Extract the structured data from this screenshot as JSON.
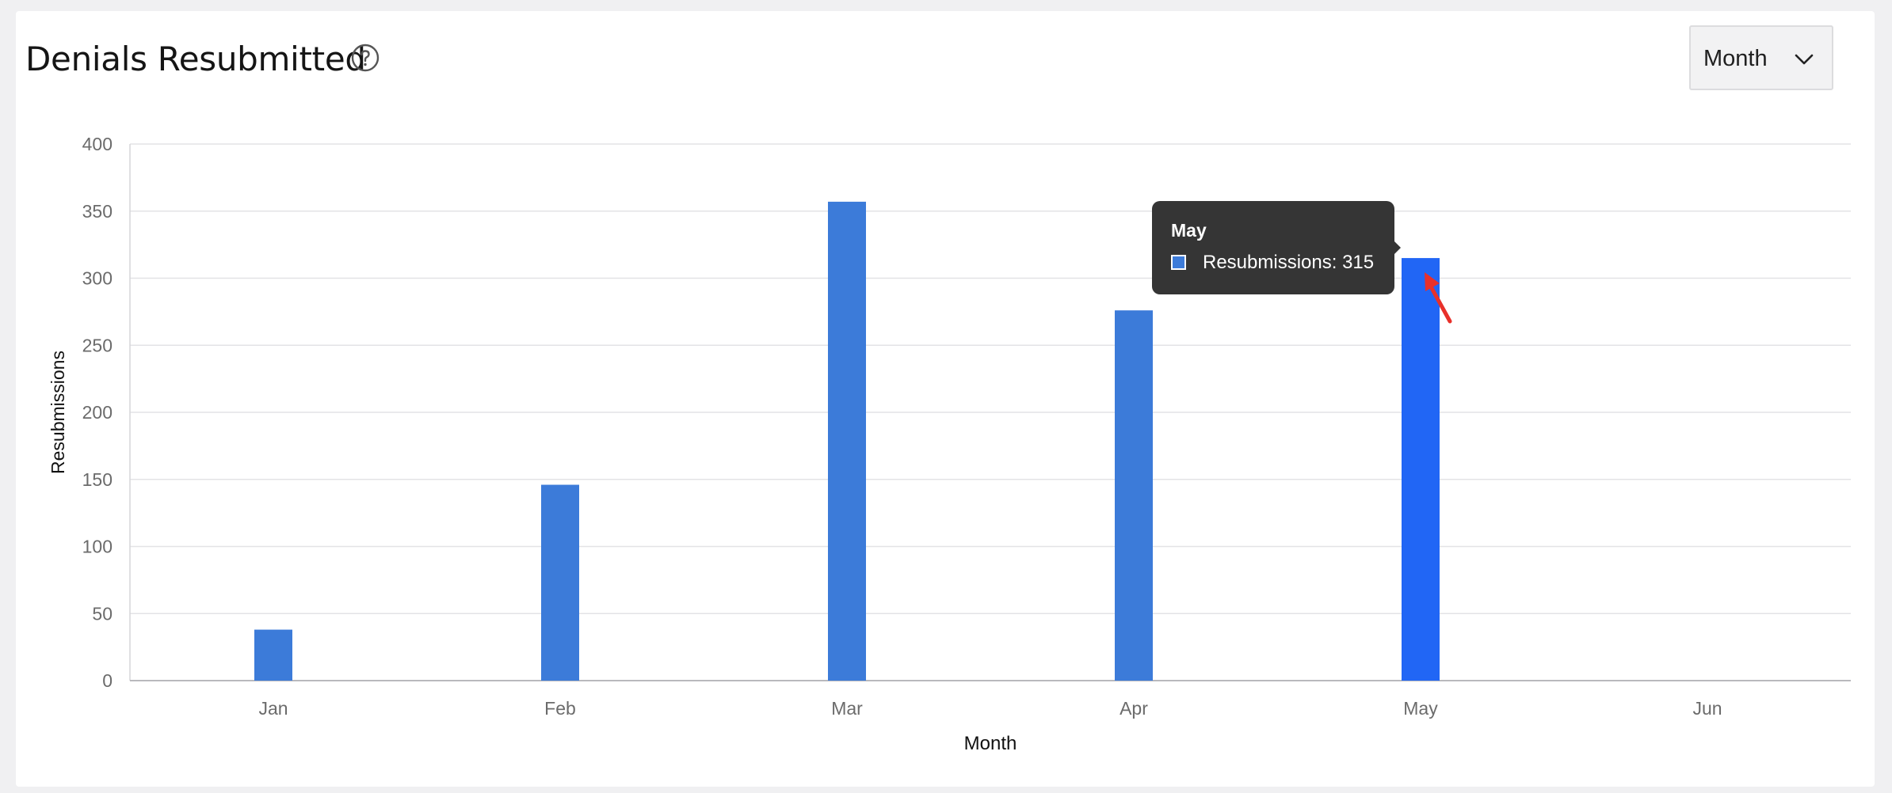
{
  "header": {
    "title": "Denials Resubmitted",
    "help_icon": "question-circle-icon"
  },
  "period_select": {
    "value": "Month",
    "icon": "chevron-down-icon"
  },
  "tooltip": {
    "title": "May",
    "text": "Resubmissions: 315"
  },
  "colors": {
    "bar": "#3c7bd9",
    "bar_active": "#2166f5",
    "annotation_arrow": "#e8302a"
  },
  "chart_data": {
    "type": "bar",
    "categories": [
      "Jan",
      "Feb",
      "Mar",
      "Apr",
      "May",
      "Jun"
    ],
    "series": [
      {
        "name": "Resubmissions",
        "values": [
          38,
          146,
          357,
          276,
          315,
          null
        ]
      }
    ],
    "xlabel": "Month",
    "ylabel": "Resubmissions",
    "ylim": [
      0,
      400
    ],
    "yticks": [
      "0",
      "50",
      "100",
      "150",
      "200",
      "250",
      "300",
      "350",
      "400"
    ],
    "grid": true,
    "highlighted_category": "May"
  }
}
